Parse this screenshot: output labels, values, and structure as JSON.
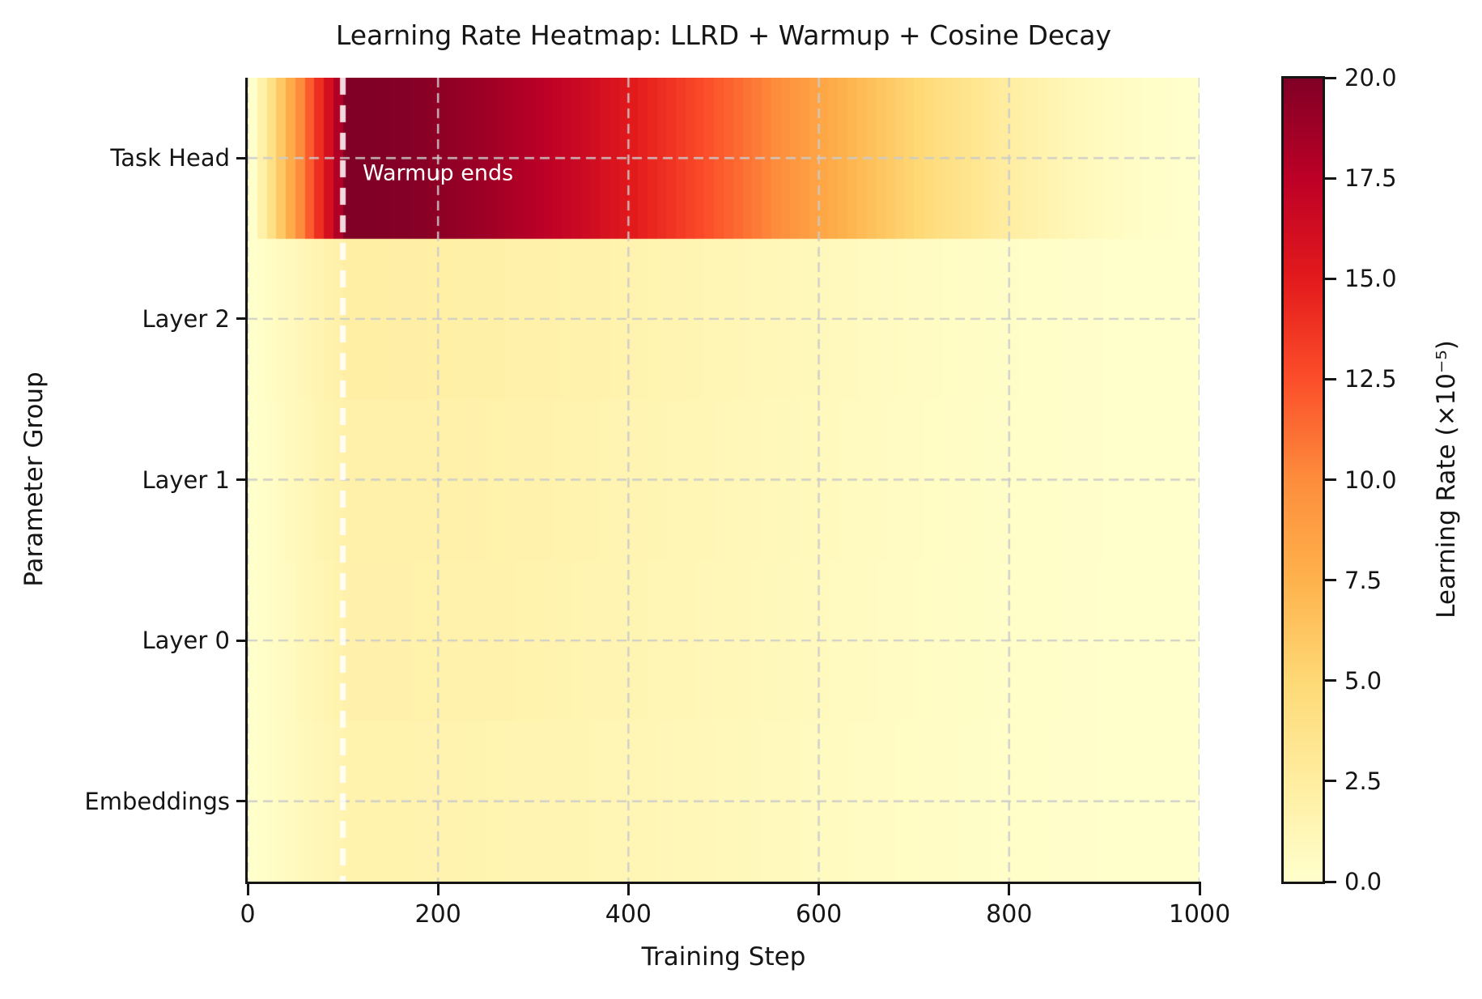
{
  "figure": {
    "title": "Learning Rate Heatmap: LLRD + Warmup + Cosine Decay"
  },
  "axes": {
    "x": {
      "label": "Training Step",
      "min": 0,
      "max": 1000,
      "ticks": [
        0,
        200,
        400,
        600,
        800,
        1000
      ],
      "tick_labels": [
        "0",
        "200",
        "400",
        "600",
        "800",
        "1000"
      ]
    },
    "y": {
      "label": "Parameter Group",
      "categories": [
        "Task Head",
        "Layer 2",
        "Layer 1",
        "Layer 0",
        "Embeddings"
      ]
    }
  },
  "colorbar": {
    "label": "Learning Rate (×10⁻⁵)",
    "tick_labels_top_to_bottom": [
      "20.0",
      "17.5",
      "15.0",
      "12.5",
      "10.0",
      "7.5",
      "5.0",
      "2.5",
      "0.0"
    ],
    "vmin": 0,
    "vmax": 20,
    "colormap": "YlOrRd",
    "stops_rgb_low_to_high": [
      [
        255,
        255,
        204
      ],
      [
        255,
        237,
        160
      ],
      [
        254,
        217,
        118
      ],
      [
        254,
        178,
        76
      ],
      [
        253,
        141,
        60
      ],
      [
        252,
        78,
        42
      ],
      [
        227,
        26,
        28
      ],
      [
        189,
        0,
        38
      ],
      [
        128,
        0,
        38
      ]
    ]
  },
  "annotation": {
    "text": "Warmup ends",
    "step": 100,
    "color": "#ffffff"
  },
  "style": {
    "grid_color": "rgba(203,203,203,0.9)",
    "warmup_line_color": "rgba(255,255,255,0.85)"
  },
  "chart_data": {
    "type": "heatmap",
    "title": "Learning Rate Heatmap: LLRD + Warmup + Cosine Decay",
    "xlabel": "Training Step",
    "ylabel": "Parameter Group",
    "rows_top_to_bottom": [
      "Task Head",
      "Layer 2",
      "Layer 1",
      "Layer 0",
      "Embeddings"
    ],
    "x_range": [
      0,
      1000
    ],
    "x_ticks": [
      0,
      200,
      400,
      600,
      800,
      1000
    ],
    "grid": true,
    "colormap": "YlOrRd",
    "vmin": 0,
    "vmax": 20,
    "colorbar_label": "Learning Rate (×10⁻⁵)",
    "colorbar_ticks": [
      0.0,
      2.5,
      5.0,
      7.5,
      10.0,
      12.5,
      15.0,
      17.5,
      20.0
    ],
    "schedule": {
      "warmup": "linear",
      "warmup_steps": 100,
      "decay": "cosine",
      "total_steps": 1000,
      "lr_at_step0_x1e5": 0,
      "lr_at_final_step_x1e5": 0
    },
    "peak_lr_x1e5_per_row": [
      20.0,
      2.2,
      2.0,
      1.9,
      1.7
    ],
    "sample_steps": [
      0,
      100,
      200,
      300,
      400,
      500,
      600,
      700,
      800,
      900,
      1000
    ],
    "values_x1e5": [
      [
        0,
        20.0,
        19.4,
        17.66,
        15.0,
        11.74,
        8.26,
        5.0,
        2.34,
        0.6,
        0
      ],
      [
        0,
        2.2,
        2.13,
        1.94,
        1.65,
        1.29,
        0.91,
        0.55,
        0.26,
        0.07,
        0
      ],
      [
        0,
        2.0,
        1.94,
        1.77,
        1.5,
        1.17,
        0.83,
        0.5,
        0.23,
        0.06,
        0
      ],
      [
        0,
        1.9,
        1.84,
        1.68,
        1.43,
        1.12,
        0.78,
        0.48,
        0.22,
        0.06,
        0
      ],
      [
        0,
        1.7,
        1.65,
        1.5,
        1.28,
        1.0,
        0.7,
        0.43,
        0.2,
        0.05,
        0
      ]
    ],
    "annotation": {
      "text": "Warmup ends",
      "step": 100
    },
    "legend_position": "none"
  }
}
